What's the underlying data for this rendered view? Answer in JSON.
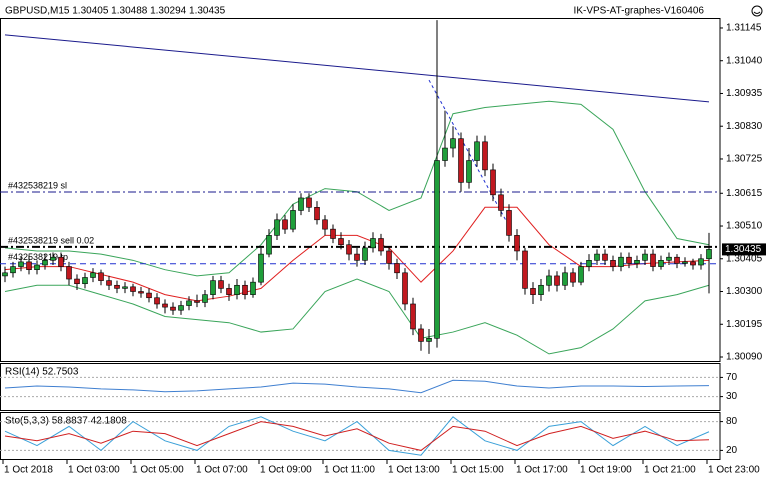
{
  "chart_data": [
    {
      "type": "candlestick",
      "title": "GBPUSD,M15  1.30405 1.30488 1.30294 1.30435",
      "subtitle": "IK-VPS-AT-graphes-V160406",
      "categories": [
        "1 Oct 2018",
        null,
        null,
        null,
        null,
        null,
        null,
        null,
        "1 Oct 03:00",
        null,
        null,
        null,
        null,
        null,
        null,
        null,
        "1 Oct 05:00",
        null,
        null,
        null,
        null,
        null,
        null,
        null,
        "1 Oct 07:00",
        null,
        null,
        null,
        null,
        null,
        null,
        null,
        "1 Oct 09:00",
        null,
        null,
        null,
        null,
        null,
        null,
        null,
        "1 Oct 11:00",
        null,
        null,
        null,
        null,
        null,
        null,
        null,
        "1 Oct 13:00",
        null,
        null,
        null,
        null,
        null,
        null,
        null,
        "1 Oct 15:00",
        null,
        null,
        null,
        null,
        null,
        null,
        null,
        "1 Oct 17:00",
        null,
        null,
        null,
        null,
        null,
        null,
        null,
        "1 Oct 19:00",
        null,
        null,
        null,
        null,
        null,
        null,
        null,
        "1 Oct 21:00",
        null,
        null,
        null,
        null,
        null,
        null,
        null,
        "1 Oct 23:00"
      ],
      "open": [
        1.3035,
        1.3036,
        1.3038,
        1.30395,
        1.3037,
        1.30385,
        1.304,
        1.3041,
        1.3038,
        1.3034,
        1.30325,
        1.30345,
        1.3036,
        1.30335,
        1.3032,
        1.3031,
        1.30315,
        1.303,
        1.30295,
        1.3028,
        1.3026,
        1.3025,
        1.3024,
        1.30255,
        1.3027,
        1.30265,
        1.3029,
        1.30335,
        1.3031,
        1.3029,
        1.3032,
        1.3029,
        1.3033,
        1.3042,
        1.3048,
        1.3053,
        1.305,
        1.3056,
        1.306,
        1.3057,
        1.3053,
        1.305,
        1.3047,
        1.3045,
        1.3042,
        1.304,
        1.3044,
        1.3047,
        1.3043,
        1.3039,
        1.3036,
        1.3026,
        1.3018,
        1.3014,
        1.3015,
        1.3072,
        1.3076,
        1.3079,
        1.3065,
        1.3072,
        1.3078,
        1.3069,
        1.3061,
        1.3056,
        1.3048,
        1.3043,
        1.3031,
        1.3029,
        1.3032,
        1.3035,
        1.3032,
        1.3036,
        1.3033,
        1.3038,
        1.304,
        1.3042,
        1.304,
        1.3038,
        1.3041,
        1.3039,
        1.304,
        1.3042,
        1.3038,
        1.304,
        1.3041,
        1.3039,
        1.30395,
        1.30385,
        1.30405
      ],
      "high": [
        1.3038,
        1.30395,
        1.3041,
        1.30415,
        1.304,
        1.3042,
        1.30425,
        1.30425,
        1.30395,
        1.30355,
        1.3036,
        1.30375,
        1.3037,
        1.3035,
        1.30335,
        1.3033,
        1.30325,
        1.30315,
        1.3031,
        1.30295,
        1.30275,
        1.30265,
        1.3027,
        1.30285,
        1.3029,
        1.30305,
        1.3035,
        1.3035,
        1.30325,
        1.3034,
        1.30335,
        1.30345,
        1.3044,
        1.305,
        1.3055,
        1.30545,
        1.3058,
        1.30615,
        1.30615,
        1.3059,
        1.30545,
        1.30515,
        1.3049,
        1.30465,
        1.3044,
        1.3046,
        1.3049,
        1.30485,
        1.30445,
        1.30405,
        1.30375,
        1.3028,
        1.30195,
        1.3018,
        1.3117,
        1.3088,
        1.3083,
        1.3081,
        1.3076,
        1.308,
        1.308,
        1.3071,
        1.3063,
        1.3058,
        1.305,
        1.3044,
        1.3033,
        1.3034,
        1.3037,
        1.30365,
        1.3038,
        1.30375,
        1.30395,
        1.3042,
        1.30435,
        1.30435,
        1.30415,
        1.30425,
        1.30425,
        1.30415,
        1.30435,
        1.30435,
        1.30415,
        1.30425,
        1.3042,
        1.3041,
        1.30405,
        1.3042,
        1.30488
      ],
      "low": [
        1.3033,
        1.30345,
        1.30365,
        1.30355,
        1.30355,
        1.3037,
        1.30385,
        1.30365,
        1.3032,
        1.30305,
        1.3031,
        1.3033,
        1.3032,
        1.30305,
        1.30295,
        1.30295,
        1.30285,
        1.3028,
        1.30265,
        1.30245,
        1.3023,
        1.30225,
        1.30225,
        1.3024,
        1.3025,
        1.3025,
        1.30275,
        1.30295,
        1.3027,
        1.30275,
        1.30275,
        1.3028,
        1.3032,
        1.3041,
        1.30465,
        1.30485,
        1.3049,
        1.30545,
        1.30555,
        1.30515,
        1.3048,
        1.30455,
        1.30435,
        1.304,
        1.3038,
        1.30385,
        1.30425,
        1.30415,
        1.3037,
        1.3034,
        1.3024,
        1.3016,
        1.3011,
        1.301,
        1.3012,
        1.307,
        1.3073,
        1.3062,
        1.3063,
        1.307,
        1.3067,
        1.3059,
        1.3054,
        1.3046,
        1.304,
        1.3029,
        1.3026,
        1.3027,
        1.303,
        1.303,
        1.30305,
        1.30315,
        1.3032,
        1.30365,
        1.30385,
        1.30385,
        1.30365,
        1.30365,
        1.30375,
        1.30375,
        1.30385,
        1.30365,
        1.3037,
        1.30385,
        1.30375,
        1.3038,
        1.3037,
        1.3037,
        1.30294
      ],
      "close": [
        1.3036,
        1.3038,
        1.30395,
        1.3037,
        1.30385,
        1.304,
        1.3041,
        1.3038,
        1.3034,
        1.30325,
        1.30345,
        1.3036,
        1.30335,
        1.3032,
        1.3031,
        1.30315,
        1.303,
        1.30295,
        1.3028,
        1.3026,
        1.3025,
        1.3024,
        1.30255,
        1.3027,
        1.30265,
        1.3029,
        1.30335,
        1.3031,
        1.3029,
        1.3032,
        1.3029,
        1.3033,
        1.3042,
        1.3048,
        1.3053,
        1.305,
        1.3056,
        1.306,
        1.3057,
        1.3053,
        1.305,
        1.3047,
        1.3045,
        1.3042,
        1.304,
        1.3044,
        1.3047,
        1.3043,
        1.3039,
        1.3036,
        1.3026,
        1.3018,
        1.3014,
        1.3015,
        1.3072,
        1.3076,
        1.3079,
        1.3065,
        1.3072,
        1.3078,
        1.3069,
        1.3061,
        1.3056,
        1.3048,
        1.3043,
        1.3031,
        1.3029,
        1.3032,
        1.3035,
        1.3032,
        1.3036,
        1.3033,
        1.3038,
        1.304,
        1.3042,
        1.304,
        1.3038,
        1.3041,
        1.3039,
        1.304,
        1.3042,
        1.3038,
        1.304,
        1.3041,
        1.3039,
        1.30395,
        1.30385,
        1.30405,
        1.30435
      ],
      "up_color": "#1f9e3a",
      "down_color": "#c0181f",
      "overlays": [
        {
          "color": "#e02020",
          "x": [
            0,
            4,
            8,
            12,
            16,
            20,
            24,
            28,
            32,
            36,
            40,
            44,
            48,
            52,
            56,
            60,
            64,
            68,
            72,
            76,
            80,
            84,
            88
          ],
          "values": [
            1.3037,
            1.3038,
            1.3038,
            1.30355,
            1.3033,
            1.3029,
            1.3027,
            1.30285,
            1.3031,
            1.304,
            1.3048,
            1.3048,
            1.3044,
            1.3033,
            1.3043,
            1.3057,
            1.3057,
            1.3045,
            1.3038,
            1.3038,
            1.3039,
            1.30395,
            1.304
          ]
        },
        {
          "color": "#3aa55a",
          "x": [
            0,
            4,
            8,
            12,
            16,
            20,
            24,
            28,
            32,
            36,
            40,
            44,
            48,
            52,
            56,
            60,
            64,
            68,
            72,
            76,
            80,
            84,
            88
          ],
          "values": [
            1.3044,
            1.3043,
            1.3043,
            1.3042,
            1.304,
            1.3037,
            1.3035,
            1.3036,
            1.3045,
            1.3058,
            1.3063,
            1.3062,
            1.3056,
            1.306,
            1.3087,
            1.3089,
            1.309,
            1.3091,
            1.309,
            1.3082,
            1.3062,
            1.3047,
            1.3045
          ]
        },
        {
          "color": "#3aa55a",
          "x": [
            0,
            4,
            8,
            12,
            16,
            20,
            24,
            28,
            32,
            36,
            40,
            44,
            48,
            52,
            56,
            60,
            64,
            68,
            72,
            76,
            80,
            84,
            88
          ],
          "values": [
            1.303,
            1.3032,
            1.3032,
            1.3029,
            1.3026,
            1.3022,
            1.3021,
            1.302,
            1.3017,
            1.3018,
            1.303,
            1.3034,
            1.303,
            1.3015,
            1.3017,
            1.302,
            1.3016,
            1.301,
            1.3012,
            1.3018,
            1.3027,
            1.3029,
            1.3032
          ]
        }
      ],
      "trend_lines": [
        {
          "color": "#1a1a8c",
          "dash": false,
          "x": [
            0,
            88
          ],
          "values": [
            1.31123,
            1.30908
          ]
        },
        {
          "color": "#2030d0",
          "dash": true,
          "x": [
            53,
            63
          ],
          "values": [
            1.30978,
            1.3051
          ]
        }
      ],
      "levels": [
        {
          "label": "#432538219 sl",
          "value": 1.30619,
          "color": "#1a1a8c",
          "dash": "8 3 2 3",
          "width": 1
        },
        {
          "label": "#432538219 sell 0.02",
          "value": 1.30443,
          "color": "#000000",
          "dash": "8 3 2 3",
          "width": 2
        },
        {
          "label": "#432538219 tp",
          "value": 1.30389,
          "color": "#2030d0",
          "dash": "6 4",
          "width": 1
        }
      ],
      "last_price": 1.30435,
      "ylim": [
        1.30074,
        1.31177
      ],
      "yticks": [
        1.31145,
        {
          "value": 1.3104,
          "label": "1.31040"
        },
        1.30935,
        {
          "value": 1.3083,
          "label": "1.30830"
        },
        1.30725,
        1.30615,
        {
          "value": 1.3051,
          "label": "1.30510"
        },
        1.30405,
        {
          "value": 1.303,
          "label": "1.30300"
        },
        1.30195,
        {
          "value": 1.3009,
          "label": "1.30090"
        }
      ]
    },
    {
      "type": "line",
      "title": "RSI(14) 52.7503",
      "x": [
        0,
        4,
        8,
        12,
        16,
        20,
        24,
        28,
        32,
        36,
        40,
        44,
        48,
        52,
        56,
        60,
        64,
        68,
        72,
        76,
        80,
        84,
        88
      ],
      "series": [
        {
          "color": "#3f7fd0",
          "values": [
            48,
            52,
            50,
            46,
            44,
            40,
            42,
            46,
            50,
            58,
            56,
            50,
            46,
            38,
            64,
            62,
            52,
            48,
            52,
            52,
            51,
            52,
            52.7503
          ]
        }
      ],
      "ylim": [
        0,
        100
      ],
      "yticks": [
        70,
        30
      ]
    },
    {
      "type": "line",
      "title": "Sto(5,3,3) 58.8837 42.1808",
      "x": [
        0,
        4,
        8,
        12,
        16,
        20,
        24,
        28,
        32,
        36,
        40,
        44,
        48,
        52,
        56,
        60,
        64,
        68,
        72,
        76,
        80,
        84,
        88
      ],
      "series": [
        {
          "color": "#3aa0d8",
          "values": [
            60,
            30,
            70,
            20,
            80,
            40,
            20,
            70,
            90,
            60,
            40,
            80,
            20,
            10,
            90,
            40,
            20,
            70,
            80,
            30,
            70,
            30,
            58.8837
          ]
        },
        {
          "color": "#d02020",
          "values": [
            50,
            40,
            55,
            35,
            60,
            55,
            30,
            55,
            80,
            70,
            50,
            65,
            35,
            20,
            70,
            60,
            30,
            55,
            70,
            45,
            60,
            40,
            42.1808
          ]
        }
      ],
      "ylim": [
        0,
        100
      ],
      "yticks": [
        80,
        20
      ]
    }
  ]
}
